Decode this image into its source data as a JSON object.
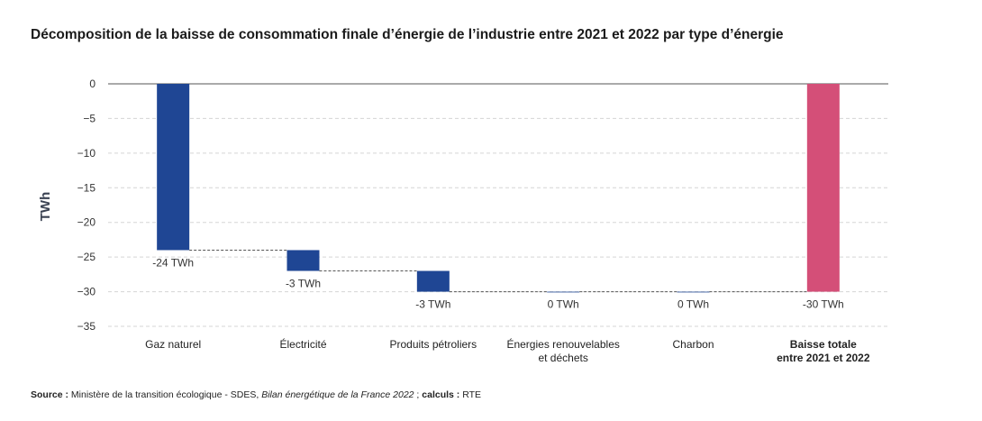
{
  "title": "Décomposition de la baisse de consommation finale d’énergie de l’industrie entre 2021 et 2022 par type d’énergie",
  "source": {
    "label": "Source :",
    "text_1": " Ministère de la transition écologique - SDES, ",
    "publication": "Bilan énergétique de la France 2022",
    "text_2": " ; ",
    "calc_label": "calculs :",
    "calc_value": " RTE"
  },
  "colors": {
    "bar": "#1f4694",
    "total": "#d44f78",
    "grid": "#d5d5d5",
    "axis": "#555555",
    "connector": "#555555"
  },
  "chart_data": {
    "type": "bar",
    "subtype": "waterfall",
    "ylabel": "TWh",
    "ylim": [
      -35,
      0
    ],
    "yticks": [
      0,
      -5,
      -10,
      -15,
      -20,
      -25,
      -30,
      -35
    ],
    "grid": true,
    "categories": [
      [
        "Gaz naturel"
      ],
      [
        "Électricité"
      ],
      [
        "Produits pétroliers"
      ],
      [
        "Énergies renouvelables",
        "et déchets"
      ],
      [
        "Charbon"
      ],
      [
        "Baisse totale",
        "entre 2021 et 2022"
      ]
    ],
    "values": [
      -24,
      -3,
      -3,
      0,
      0,
      -30
    ],
    "is_total": [
      false,
      false,
      false,
      false,
      false,
      true
    ],
    "data_labels": [
      "-24 TWh",
      "-3 TWh",
      "-3 TWh",
      "0 TWh",
      "0 TWh",
      "-30 TWh"
    ]
  }
}
